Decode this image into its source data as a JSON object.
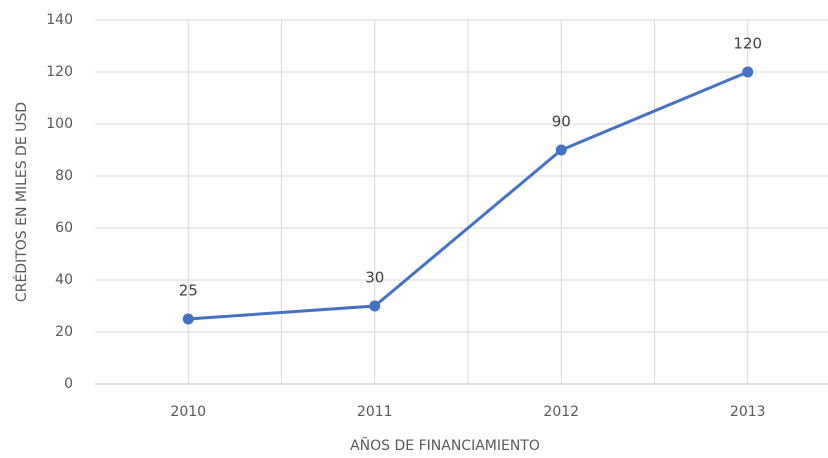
{
  "chart_data": {
    "type": "line",
    "x_label": "AÑOS DE FINANCIAMIENTO",
    "y_label": "CRÉDITOS EN MILES DE USD",
    "categories": [
      "2010",
      "2011",
      "2012",
      "2013"
    ],
    "series": [
      {
        "name": "Créditos",
        "color": "#4472c4",
        "values": [
          25,
          30,
          90,
          120
        ]
      }
    ],
    "ylim": [
      0,
      140
    ],
    "yticks": [
      0,
      20,
      40,
      60,
      80,
      100,
      120,
      140
    ],
    "grid": true
  }
}
